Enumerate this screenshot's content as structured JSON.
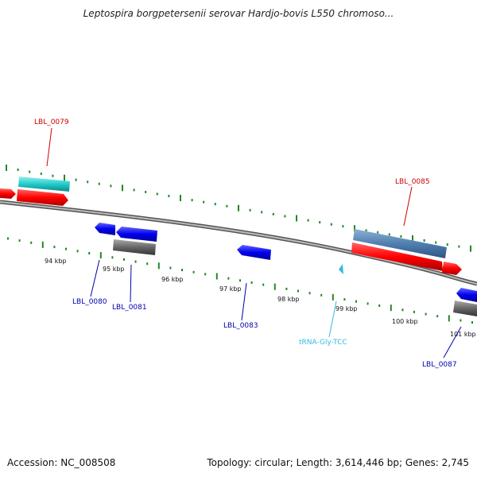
{
  "title": "Leptospira borgpetersenii serovar Hardjo-bovis L550 chromoso...",
  "footer": {
    "accession": "Accession: NC_008508",
    "topology": "Topology: circular; Length: 3,614,446 bp; Genes: 2,745"
  },
  "scale_labels": [
    "94 kbp",
    "95 kbp",
    "96 kbp",
    "97 kbp",
    "98 kbp",
    "99 kbp",
    "100 kbp",
    "101 kbp"
  ],
  "gene_labels": [
    "LBL_0079",
    "LBL_0085",
    "LBL_0080",
    "LBL_0081",
    "LBL_0083",
    "tRNA-Gly-TCC",
    "LBL_0087"
  ],
  "colors": {
    "forward_cds": "#ff0000",
    "reverse_cds": "#0000ff",
    "forward_label": "#cc0000",
    "reverse_label": "#0000aa",
    "trna": "#33bbe0",
    "cyan_feature": "#33cccc",
    "steel_feature": "#4f7fb0",
    "gray_feature": "#666666",
    "backbone": "#888888",
    "tick": "#228822"
  }
}
